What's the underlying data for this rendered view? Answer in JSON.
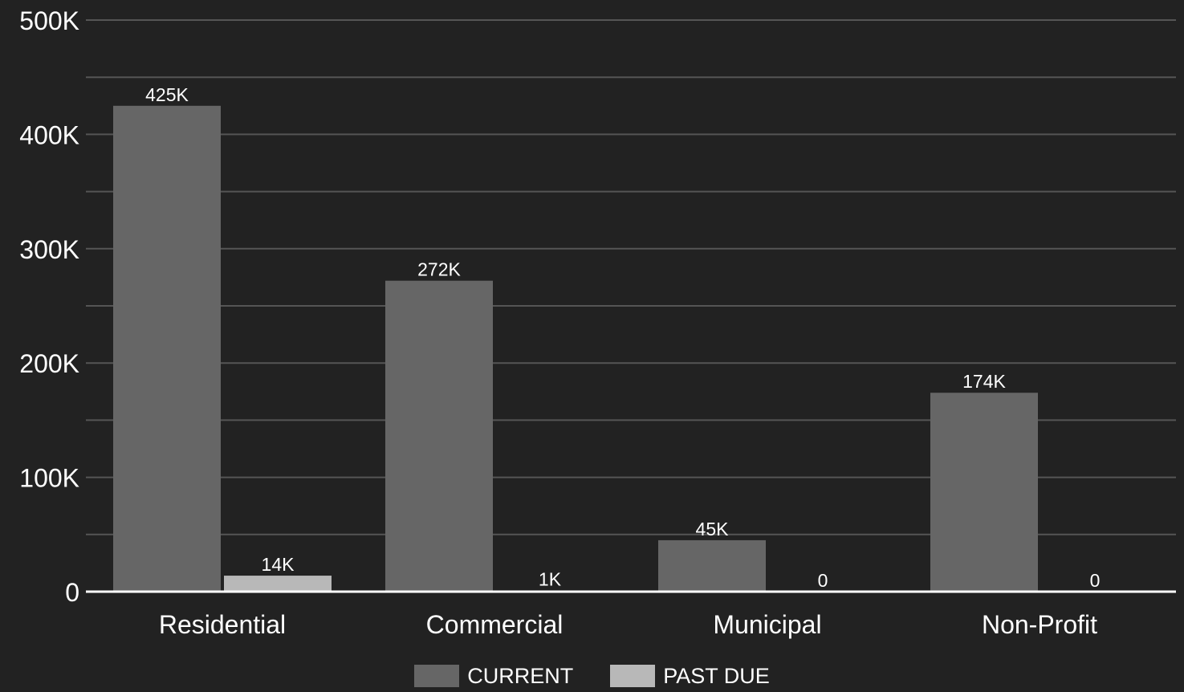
{
  "colors": {
    "background": "#222222",
    "current": "#666666",
    "past_due": "#b8b8b8",
    "grid": "#555555",
    "axis": "#ffffff",
    "text": "#ffffff"
  },
  "legend": {
    "items": [
      {
        "label": "CURRENT",
        "color": "#666666"
      },
      {
        "label": "PAST DUE",
        "color": "#b8b8b8"
      }
    ]
  },
  "chart_data": {
    "type": "bar",
    "title": "",
    "xlabel": "",
    "ylabel": "",
    "categories": [
      "Residential",
      "Commercial",
      "Municipal",
      "Non-Profit"
    ],
    "series": [
      {
        "name": "CURRENT",
        "values": [
          425000,
          272000,
          45000,
          174000
        ],
        "labels": [
          "425K",
          "272K",
          "45K",
          "174K"
        ]
      },
      {
        "name": "PAST DUE",
        "values": [
          14000,
          1000,
          0,
          0
        ],
        "labels": [
          "14K",
          "1K",
          "0",
          "0"
        ]
      }
    ],
    "ylim": [
      0,
      500000
    ],
    "yticks": [
      0,
      100000,
      200000,
      300000,
      400000,
      500000
    ],
    "ytick_labels": [
      "0",
      "100K",
      "200K",
      "300K",
      "400K",
      "500K"
    ],
    "grid": true,
    "legend_position": "bottom-center"
  }
}
